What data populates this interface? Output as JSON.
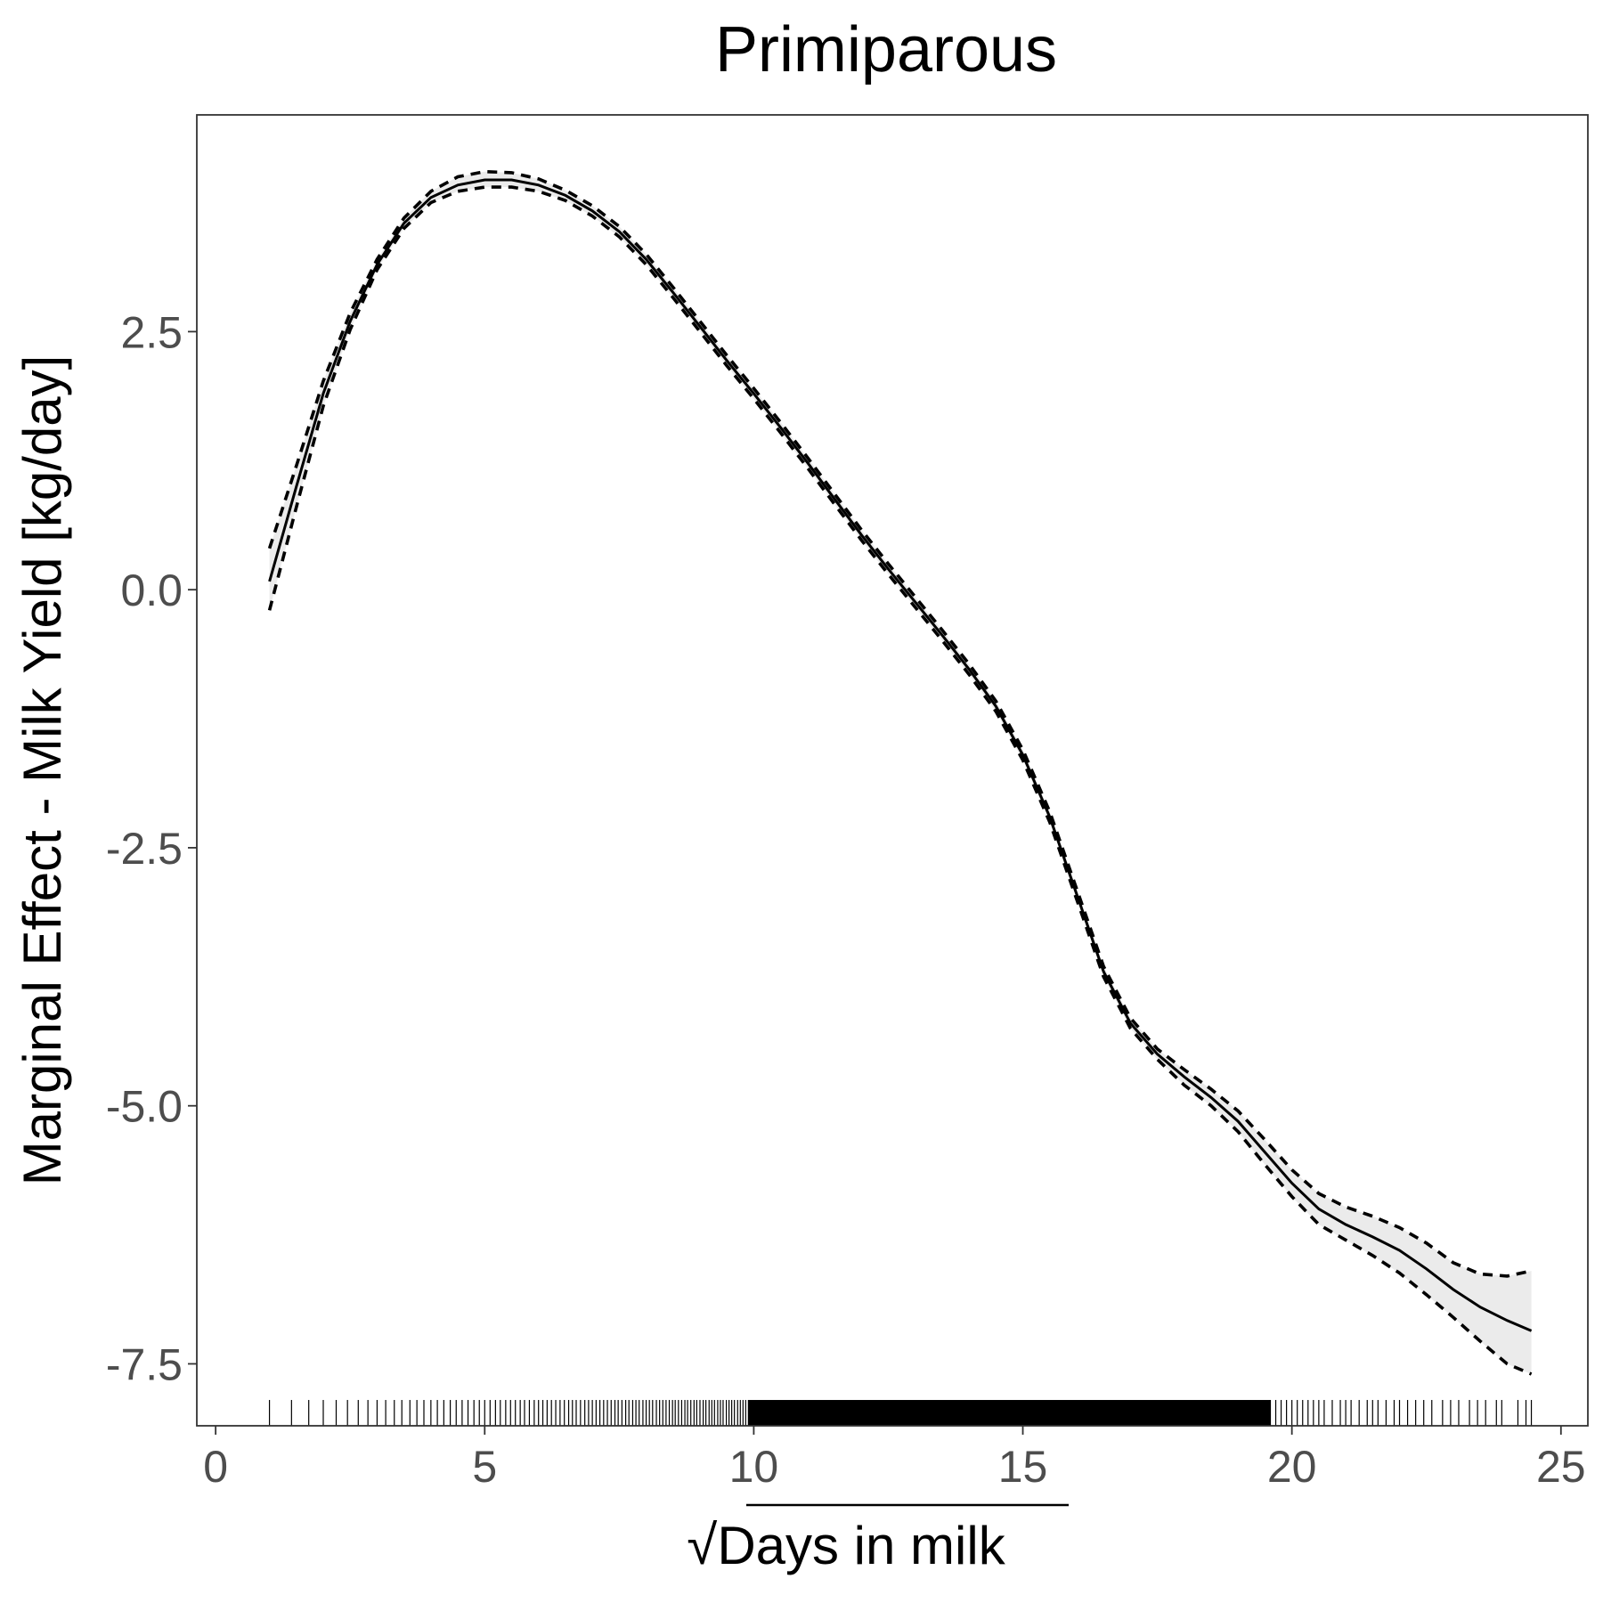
{
  "chart_data": {
    "type": "line",
    "title": "Primiparous",
    "xlabel_radical": "√",
    "xlabel": "Days in milk",
    "ylabel": "Marginal Effect - Milk Yield [kg/day]",
    "xlim": [
      -0.35,
      25.5
    ],
    "ylim": [
      -8.1,
      4.6
    ],
    "xticks": [
      0,
      5,
      10,
      15,
      20,
      25
    ],
    "xtick_labels": [
      "0",
      "5",
      "10",
      "15",
      "20",
      "25"
    ],
    "yticks": [
      2.5,
      0.0,
      -2.5,
      -5.0,
      -7.5
    ],
    "ytick_labels": [
      "2.5",
      "0.0",
      "-2.5",
      "-5.0",
      "-7.5"
    ],
    "grid": false,
    "series": [
      {
        "role": "estimate",
        "line_style": "solid",
        "x": [
          1.0,
          1.5,
          2.0,
          2.5,
          3.0,
          3.5,
          4.0,
          4.5,
          5.0,
          5.5,
          6.0,
          6.5,
          7.0,
          7.5,
          8.0,
          8.5,
          9.0,
          9.5,
          10.0,
          10.5,
          11.0,
          11.5,
          12.0,
          12.5,
          13.0,
          13.5,
          14.0,
          14.5,
          15.0,
          15.5,
          16.0,
          16.5,
          17.0,
          17.5,
          18.0,
          18.5,
          19.0,
          19.5,
          20.0,
          20.5,
          21.0,
          21.5,
          22.0,
          22.5,
          23.0,
          23.5,
          24.0,
          24.45
        ],
        "y": [
          0.08,
          1.0,
          1.9,
          2.6,
          3.15,
          3.55,
          3.8,
          3.92,
          3.97,
          3.97,
          3.92,
          3.82,
          3.67,
          3.47,
          3.2,
          2.88,
          2.55,
          2.22,
          1.9,
          1.57,
          1.23,
          0.88,
          0.53,
          0.2,
          -0.12,
          -0.44,
          -0.77,
          -1.13,
          -1.6,
          -2.2,
          -2.95,
          -3.7,
          -4.2,
          -4.5,
          -4.72,
          -4.92,
          -5.15,
          -5.45,
          -5.75,
          -6.0,
          -6.15,
          -6.27,
          -6.4,
          -6.58,
          -6.78,
          -6.95,
          -7.08,
          -7.18
        ]
      },
      {
        "role": "upper-bound",
        "line_style": "dashed",
        "x": [
          1.0,
          1.5,
          2.0,
          2.5,
          3.0,
          3.5,
          4.0,
          4.5,
          5.0,
          5.5,
          6.0,
          6.5,
          7.0,
          7.5,
          8.0,
          8.5,
          9.0,
          9.5,
          10.0,
          10.5,
          11.0,
          11.5,
          12.0,
          12.5,
          13.0,
          13.5,
          14.0,
          14.5,
          15.0,
          15.5,
          16.0,
          16.5,
          17.0,
          17.5,
          18.0,
          18.5,
          19.0,
          19.5,
          20.0,
          20.5,
          21.0,
          21.5,
          22.0,
          22.5,
          23.0,
          23.5,
          24.0,
          24.45
        ],
        "y": [
          0.4,
          1.2,
          2.02,
          2.68,
          3.2,
          3.6,
          3.86,
          4.0,
          4.05,
          4.04,
          3.98,
          3.87,
          3.72,
          3.52,
          3.25,
          2.93,
          2.6,
          2.27,
          1.95,
          1.62,
          1.28,
          0.93,
          0.58,
          0.25,
          -0.07,
          -0.39,
          -0.72,
          -1.08,
          -1.55,
          -2.15,
          -2.9,
          -3.65,
          -4.15,
          -4.45,
          -4.65,
          -4.84,
          -5.05,
          -5.33,
          -5.62,
          -5.85,
          -5.98,
          -6.07,
          -6.18,
          -6.33,
          -6.52,
          -6.63,
          -6.65,
          -6.6
        ]
      },
      {
        "role": "lower-bound",
        "line_style": "dashed",
        "x": [
          1.0,
          1.5,
          2.0,
          2.5,
          3.0,
          3.5,
          4.0,
          4.5,
          5.0,
          5.5,
          6.0,
          6.5,
          7.0,
          7.5,
          8.0,
          8.5,
          9.0,
          9.5,
          10.0,
          10.5,
          11.0,
          11.5,
          12.0,
          12.5,
          13.0,
          13.5,
          14.0,
          14.5,
          15.0,
          15.5,
          16.0,
          16.5,
          17.0,
          17.5,
          18.0,
          18.5,
          19.0,
          19.5,
          20.0,
          20.5,
          21.0,
          21.5,
          22.0,
          22.5,
          23.0,
          23.5,
          24.0,
          24.45
        ],
        "y": [
          -0.2,
          0.8,
          1.78,
          2.52,
          3.1,
          3.5,
          3.75,
          3.86,
          3.9,
          3.9,
          3.86,
          3.77,
          3.62,
          3.42,
          3.15,
          2.83,
          2.5,
          2.17,
          1.85,
          1.52,
          1.18,
          0.83,
          0.48,
          0.15,
          -0.17,
          -0.49,
          -0.82,
          -1.18,
          -1.65,
          -2.25,
          -3.0,
          -3.75,
          -4.25,
          -4.55,
          -4.8,
          -5.0,
          -5.25,
          -5.57,
          -5.88,
          -6.15,
          -6.3,
          -6.45,
          -6.62,
          -6.83,
          -7.05,
          -7.28,
          -7.5,
          -7.6
        ]
      }
    ],
    "rug_x": [
      1.0,
      1.41,
      1.73,
      2.0,
      2.24,
      2.45,
      2.65,
      2.83,
      3.0,
      3.16,
      3.32,
      3.46,
      3.61,
      3.74,
      3.87,
      4.0,
      4.12,
      4.24,
      4.36,
      4.47,
      4.58,
      4.69,
      4.8,
      4.9,
      5.0,
      5.1,
      5.2,
      5.29,
      5.39,
      5.48,
      5.57,
      5.66,
      5.74,
      5.83,
      5.92,
      6.0,
      6.08,
      6.16,
      6.24,
      6.32,
      6.4,
      6.48,
      6.56,
      6.63,
      6.7,
      6.78,
      6.86,
      6.93,
      7.0,
      7.07,
      7.14,
      7.21,
      7.28,
      7.35,
      7.42,
      7.48,
      7.55,
      7.62,
      7.68,
      7.75,
      7.81,
      7.87,
      7.94,
      8.0,
      8.06,
      8.12,
      8.19,
      8.25,
      8.31,
      8.37,
      8.43,
      8.49,
      8.54,
      8.6,
      8.66,
      8.72,
      8.77,
      8.83,
      8.89,
      8.94,
      9.0,
      9.06,
      9.11,
      9.17,
      9.22,
      9.27,
      9.33,
      9.38,
      9.43,
      9.49,
      9.54,
      9.59,
      9.64,
      9.7,
      9.75,
      9.8,
      9.85,
      9.9,
      19.6,
      19.7,
      19.8,
      19.9,
      20.0,
      20.1,
      20.2,
      20.3,
      20.4,
      20.5,
      20.6,
      20.75,
      20.9,
      21.0,
      21.1,
      21.25,
      21.4,
      21.5,
      21.6,
      21.75,
      21.9,
      22.0,
      22.15,
      22.3,
      22.45,
      22.6,
      22.8,
      22.95,
      23.1,
      23.3,
      23.45,
      23.6,
      23.8,
      23.9,
      24.2,
      24.35,
      24.45
    ],
    "rug_dense_range": [
      9.9,
      19.6
    ]
  }
}
